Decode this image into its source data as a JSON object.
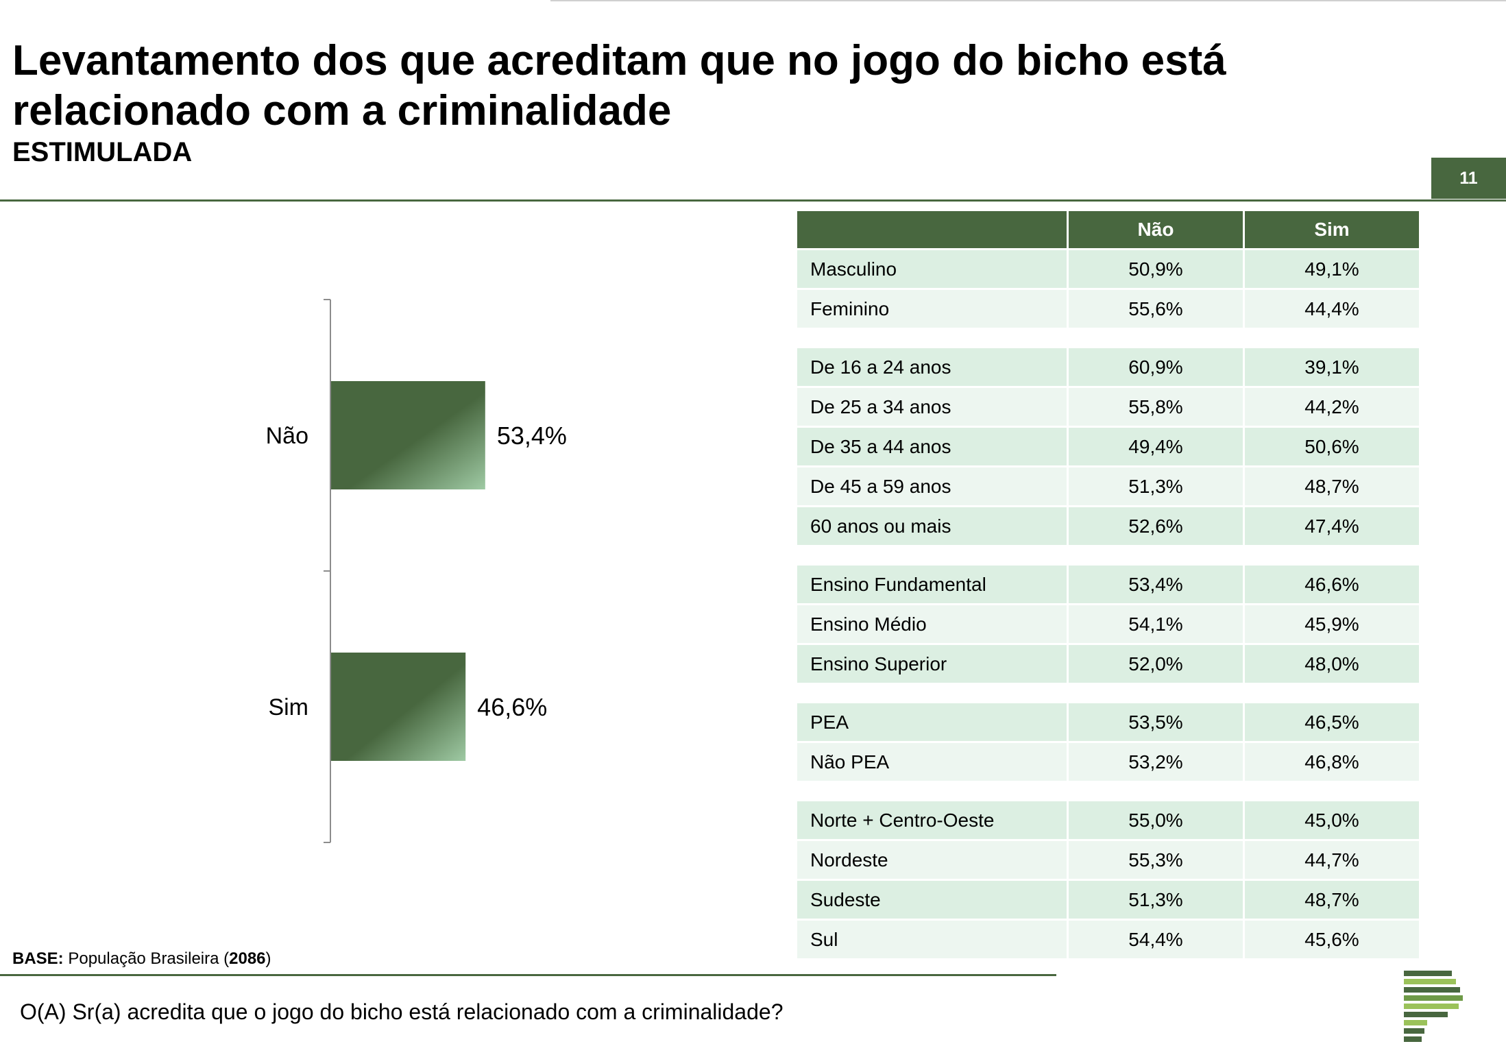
{
  "header": {
    "title": "Levantamento dos que acreditam que no jogo do bicho está relacionado com a criminalidade",
    "subtitle": "ESTIMULADA",
    "page_number": "11"
  },
  "chart_data": {
    "type": "bar",
    "orientation": "horizontal",
    "categories": [
      "Não",
      "Sim"
    ],
    "values": [
      53.4,
      46.6
    ],
    "value_labels": [
      "53,4%",
      "46,6%"
    ],
    "unit": "%",
    "xlim": [
      0,
      100
    ],
    "color": "#48673f"
  },
  "table": {
    "columns": [
      "",
      "Não",
      "Sim"
    ],
    "groups": [
      [
        {
          "label": "Masculino",
          "nao": "50,9%",
          "sim": "49,1%"
        },
        {
          "label": "Feminino",
          "nao": "55,6%",
          "sim": "44,4%"
        }
      ],
      [
        {
          "label": "De 16 a 24 anos",
          "nao": "60,9%",
          "sim": "39,1%"
        },
        {
          "label": "De 25 a 34 anos",
          "nao": "55,8%",
          "sim": "44,2%"
        },
        {
          "label": "De 35 a 44 anos",
          "nao": "49,4%",
          "sim": "50,6%"
        },
        {
          "label": "De 45 a 59 anos",
          "nao": "51,3%",
          "sim": "48,7%"
        },
        {
          "label": "60 anos ou mais",
          "nao": "52,6%",
          "sim": "47,4%"
        }
      ],
      [
        {
          "label": "Ensino Fundamental",
          "nao": "53,4%",
          "sim": "46,6%"
        },
        {
          "label": "Ensino Médio",
          "nao": "54,1%",
          "sim": "45,9%"
        },
        {
          "label": "Ensino Superior",
          "nao": "52,0%",
          "sim": "48,0%"
        }
      ],
      [
        {
          "label": " PEA",
          "nao": "53,5%",
          "sim": "46,5%"
        },
        {
          "label": " Não PEA",
          "nao": "53,2%",
          "sim": "46,8%"
        }
      ],
      [
        {
          "label": "Norte + Centro-Oeste",
          "nao": "55,0%",
          "sim": "45,0%"
        },
        {
          "label": "Nordeste",
          "nao": "55,3%",
          "sim": "44,7%"
        },
        {
          "label": "Sudeste",
          "nao": "51,3%",
          "sim": "48,7%"
        },
        {
          "label": "Sul",
          "nao": "54,4%",
          "sim": "45,6%"
        }
      ]
    ]
  },
  "footer": {
    "base_label": "BASE:",
    "base_text": " População Brasileira (",
    "base_count": "2086",
    "base_close": ")",
    "question": "O(A) Sr(a) acredita que o jogo do bicho está relacionado com a criminalidade?"
  },
  "colors": {
    "brand": "#48673f",
    "row_shade_a": "#dcefe2",
    "row_shade_b": "#edf6f0"
  }
}
